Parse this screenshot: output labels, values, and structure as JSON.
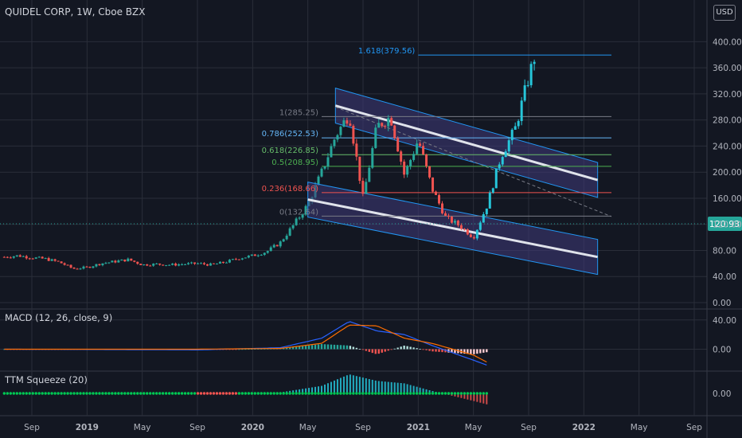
{
  "header": {
    "title": "QUIDEL CORP, 1W, Cboe BZX",
    "currency": "USD",
    "macd_label": "MACD (12, 26, close, 9)",
    "squeeze_label": "TTM Squeeze (20)"
  },
  "colors": {
    "background": "#131722",
    "grid": "#2a2e39",
    "up_candle": "#26c6da",
    "down_candle": "#ef5350",
    "history_candle": "#26a69a",
    "channel_border": "#2196f3",
    "channel_fill": "#3f3a7a",
    "channel_midline": "#e0e3eb",
    "macd_line": "#2962ff",
    "signal_line": "#ff6d00",
    "price_tag": "#26a69a"
  },
  "chart_data": [
    {
      "type": "candlestick",
      "title": "QUIDEL CORP, 1W, Cboe BZX",
      "ylim": [
        0,
        420
      ],
      "y_ticks": [
        "0.00",
        "40.00",
        "80.00",
        "120.00",
        "160.00",
        "200.00",
        "240.00",
        "280.00",
        "320.00",
        "360.00",
        "400.00"
      ],
      "y_tick_values": [
        0,
        40,
        80,
        120,
        160,
        200,
        240,
        280,
        320,
        360,
        400
      ],
      "x_ticks": [
        "Sep",
        "2019",
        "May",
        "Sep",
        "2020",
        "May",
        "Sep",
        "2021",
        "May",
        "Sep",
        "2022",
        "May",
        "Sep"
      ],
      "x_tick_values": [
        "2018-09",
        "2019-01",
        "2019-05",
        "2019-09",
        "2020-01",
        "2020-05",
        "2020-09",
        "2021-01",
        "2021-05",
        "2021-09",
        "2022-01",
        "2022-05",
        "2022-09"
      ],
      "x_range": [
        "2018-07",
        "2022-10"
      ],
      "last_price": "120.93",
      "fib_levels": [
        {
          "label": "1.618(379.56)",
          "value": 379.56,
          "color": "#2196f3"
        },
        {
          "label": "1(285.25)",
          "value": 285.25,
          "color": "#787b86"
        },
        {
          "label": "0.786(252.53)",
          "value": 252.53,
          "color": "#64b5f6"
        },
        {
          "label": "0.618(226.85)",
          "value": 226.85,
          "color": "#66bb6a"
        },
        {
          "label": "0.5(208.95)",
          "value": 208.95,
          "color": "#4caf50"
        },
        {
          "label": "0.236(168.66)",
          "value": 168.66,
          "color": "#ef5350"
        },
        {
          "label": "0(132.64)",
          "value": 132.64,
          "color": "#787b86"
        }
      ],
      "price_path": [
        [
          "2018-07",
          70
        ],
        [
          "2018-08",
          72
        ],
        [
          "2018-09",
          69
        ],
        [
          "2018-10",
          67
        ],
        [
          "2018-11",
          62
        ],
        [
          "2018-12",
          52
        ],
        [
          "2019-01",
          54
        ],
        [
          "2019-02",
          60
        ],
        [
          "2019-03",
          63
        ],
        [
          "2019-04",
          66
        ],
        [
          "2019-05",
          58
        ],
        [
          "2019-06",
          59
        ],
        [
          "2019-07",
          58
        ],
        [
          "2019-08",
          59
        ],
        [
          "2019-09",
          60
        ],
        [
          "2019-10",
          58
        ],
        [
          "2019-11",
          62
        ],
        [
          "2019-12",
          68
        ],
        [
          "2020-01",
          72
        ],
        [
          "2020-02",
          78
        ],
        [
          "2020-03",
          92
        ],
        [
          "2020-04",
          120
        ],
        [
          "2020-05",
          150
        ],
        [
          "2020-06",
          200
        ],
        [
          "2020-07",
          255
        ],
        [
          "2020-08",
          290
        ],
        [
          "2020-09",
          160
        ],
        [
          "2020-10",
          270
        ],
        [
          "2020-11",
          285
        ],
        [
          "2020-12",
          195
        ],
        [
          "2021-01",
          250
        ],
        [
          "2021-02",
          175
        ],
        [
          "2021-03",
          130
        ],
        [
          "2021-04",
          118
        ],
        [
          "2021-05",
          100
        ],
        [
          "2021-06",
          150
        ],
        [
          "2021-07",
          225
        ],
        [
          "2021-08",
          265
        ],
        [
          "2021-09",
          345
        ],
        [
          "2021-09-15",
          380
        ]
      ],
      "trend_channels": [
        {
          "name": "upper-channel",
          "from": [
            "2020-07",
            302
          ],
          "to": [
            "2022-02",
            188
          ],
          "width": 44
        },
        {
          "name": "lower-channel",
          "from": [
            "2020-05",
            158
          ],
          "to": [
            "2022-02",
            70
          ],
          "width": 44
        }
      ]
    },
    {
      "type": "line",
      "title": "MACD (12, 26, close, 9)",
      "ylim": [
        -30,
        55
      ],
      "y_ticks": [
        "0.00",
        "40.00"
      ],
      "y_tick_values": [
        0,
        40
      ],
      "series": [
        {
          "name": "MACD",
          "points": [
            [
              "2018-07",
              0
            ],
            [
              "2019-09",
              -1
            ],
            [
              "2020-03",
              2
            ],
            [
              "2020-06",
              15
            ],
            [
              "2020-08",
              38
            ],
            [
              "2020-10",
              25
            ],
            [
              "2020-12",
              20
            ],
            [
              "2021-02",
              5
            ],
            [
              "2021-05",
              -15
            ],
            [
              "2021-06",
              -22
            ]
          ]
        },
        {
          "name": "Signal",
          "points": [
            [
              "2018-07",
              0
            ],
            [
              "2019-09",
              0
            ],
            [
              "2020-03",
              1
            ],
            [
              "2020-06",
              8
            ],
            [
              "2020-08",
              33
            ],
            [
              "2020-10",
              32
            ],
            [
              "2020-12",
              15
            ],
            [
              "2021-02",
              8
            ],
            [
              "2021-05",
              -8
            ],
            [
              "2021-06",
              -18
            ]
          ]
        }
      ]
    },
    {
      "type": "bar",
      "title": "TTM Squeeze (20)",
      "ylim": [
        -40,
        40
      ],
      "y_ticks": [
        "0.00"
      ],
      "y_tick_values": [
        0
      ]
    }
  ]
}
